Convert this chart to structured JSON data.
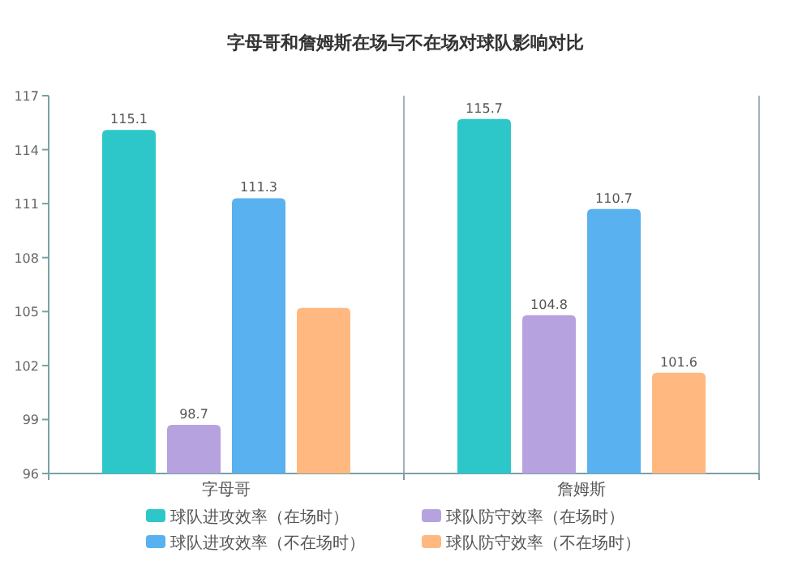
{
  "chart_data": {
    "type": "bar",
    "title": "字母哥和詹姆斯在场与不在场对球队影响对比",
    "categories": [
      "字母哥",
      "詹姆斯"
    ],
    "series": [
      {
        "name": "球队进攻效率（在场时）",
        "color": "#2ec7c9",
        "values": [
          115.1,
          115.7
        ],
        "value_labels": [
          "115.1",
          "115.7"
        ]
      },
      {
        "name": "球队防守效率（在场时）",
        "color": "#b6a2de",
        "values": [
          98.7,
          104.8
        ],
        "value_labels": [
          "98.7",
          "104.8"
        ]
      },
      {
        "name": "球队进攻效率（不在场时）",
        "color": "#5ab1ef",
        "values": [
          111.3,
          110.7
        ],
        "value_labels": [
          "111.3",
          "110.7"
        ]
      },
      {
        "name": "球队防守效率（不在场时）",
        "color": "#ffb980",
        "values": [
          105.2,
          101.6
        ],
        "value_labels": [
          null,
          "101.6"
        ]
      }
    ],
    "ylim": [
      96,
      117
    ],
    "yticks": [
      96,
      99,
      102,
      105,
      108,
      111,
      114,
      117
    ],
    "grid": "x",
    "legend": "bottom"
  }
}
